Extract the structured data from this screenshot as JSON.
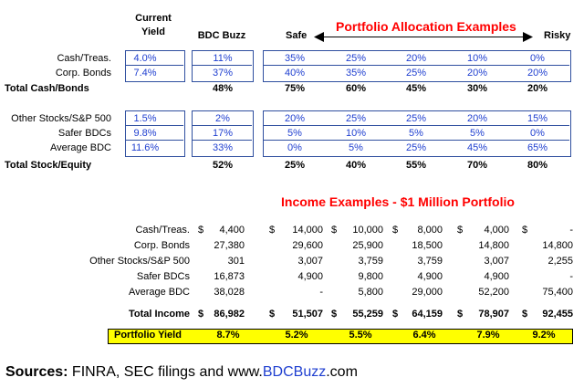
{
  "headers": {
    "current_yield_l1": "Current",
    "current_yield_l2": "Yield",
    "bdc_buzz": "BDC Buzz",
    "safe": "Safe",
    "risky": "Risky",
    "allocation_title": "Portfolio Allocation Examples"
  },
  "cash_group": {
    "rows": [
      {
        "label": "Cash/Treas.",
        "yield": "4.0%",
        "buzz": "11%",
        "p": [
          "35%",
          "25%",
          "20%",
          "10%",
          "0%"
        ]
      },
      {
        "label": "Corp. Bonds",
        "yield": "7.4%",
        "buzz": "37%",
        "p": [
          "40%",
          "35%",
          "25%",
          "20%",
          "20%"
        ]
      }
    ],
    "total": {
      "label": "Total Cash/Bonds",
      "buzz": "48%",
      "p": [
        "75%",
        "60%",
        "45%",
        "30%",
        "20%"
      ]
    }
  },
  "stock_group": {
    "rows": [
      {
        "label": "Other Stocks/S&P 500",
        "yield": "1.5%",
        "buzz": "2%",
        "p": [
          "20%",
          "25%",
          "25%",
          "20%",
          "15%"
        ]
      },
      {
        "label": "Safer BDCs",
        "yield": "9.8%",
        "buzz": "17%",
        "p": [
          "5%",
          "10%",
          "5%",
          "5%",
          "0%"
        ]
      },
      {
        "label": "Average BDC",
        "yield": "11.6%",
        "buzz": "33%",
        "p": [
          "0%",
          "5%",
          "25%",
          "45%",
          "65%"
        ]
      }
    ],
    "total": {
      "label": "Total Stock/Equity",
      "buzz": "52%",
      "p": [
        "25%",
        "40%",
        "55%",
        "70%",
        "80%"
      ]
    }
  },
  "income": {
    "title": "Income Examples - $1 Million Portfolio",
    "rows": [
      {
        "label": "Cash/Treas.",
        "v": [
          "4,400",
          "14,000",
          "10,000",
          "8,000",
          "4,000",
          "-"
        ],
        "dollar": true
      },
      {
        "label": "Corp. Bonds",
        "v": [
          "27,380",
          "29,600",
          "25,900",
          "18,500",
          "14,800",
          "14,800"
        ],
        "dollar": false
      },
      {
        "label": "Other Stocks/S&P 500",
        "v": [
          "301",
          "3,007",
          "3,759",
          "3,759",
          "3,007",
          "2,255"
        ],
        "dollar": false
      },
      {
        "label": "Safer BDCs",
        "v": [
          "16,873",
          "4,900",
          "9,800",
          "4,900",
          "4,900",
          "-"
        ],
        "dollar": false
      },
      {
        "label": "Average BDC",
        "v": [
          "38,028",
          "-",
          "5,800",
          "29,000",
          "52,200",
          "75,400"
        ],
        "dollar": false
      }
    ],
    "total": {
      "label": "Total Income",
      "v": [
        "86,982",
        "51,507",
        "55,259",
        "64,159",
        "78,907",
        "92,455"
      ]
    },
    "yield_row": {
      "label": "Portfolio Yield",
      "v": [
        "8.7%",
        "5.2%",
        "5.5%",
        "6.4%",
        "7.9%",
        "9.2%"
      ]
    },
    "dollar_sign": "$"
  },
  "sources": {
    "prefix": "Sources:",
    "text": " FINRA, SEC filings and www.",
    "link": "BDCBuzz",
    "suffix": ".com"
  },
  "colors": {
    "value_blue": "#1f3fd0",
    "title_red": "#ff0000",
    "yield_highlight": "#ffff00"
  }
}
